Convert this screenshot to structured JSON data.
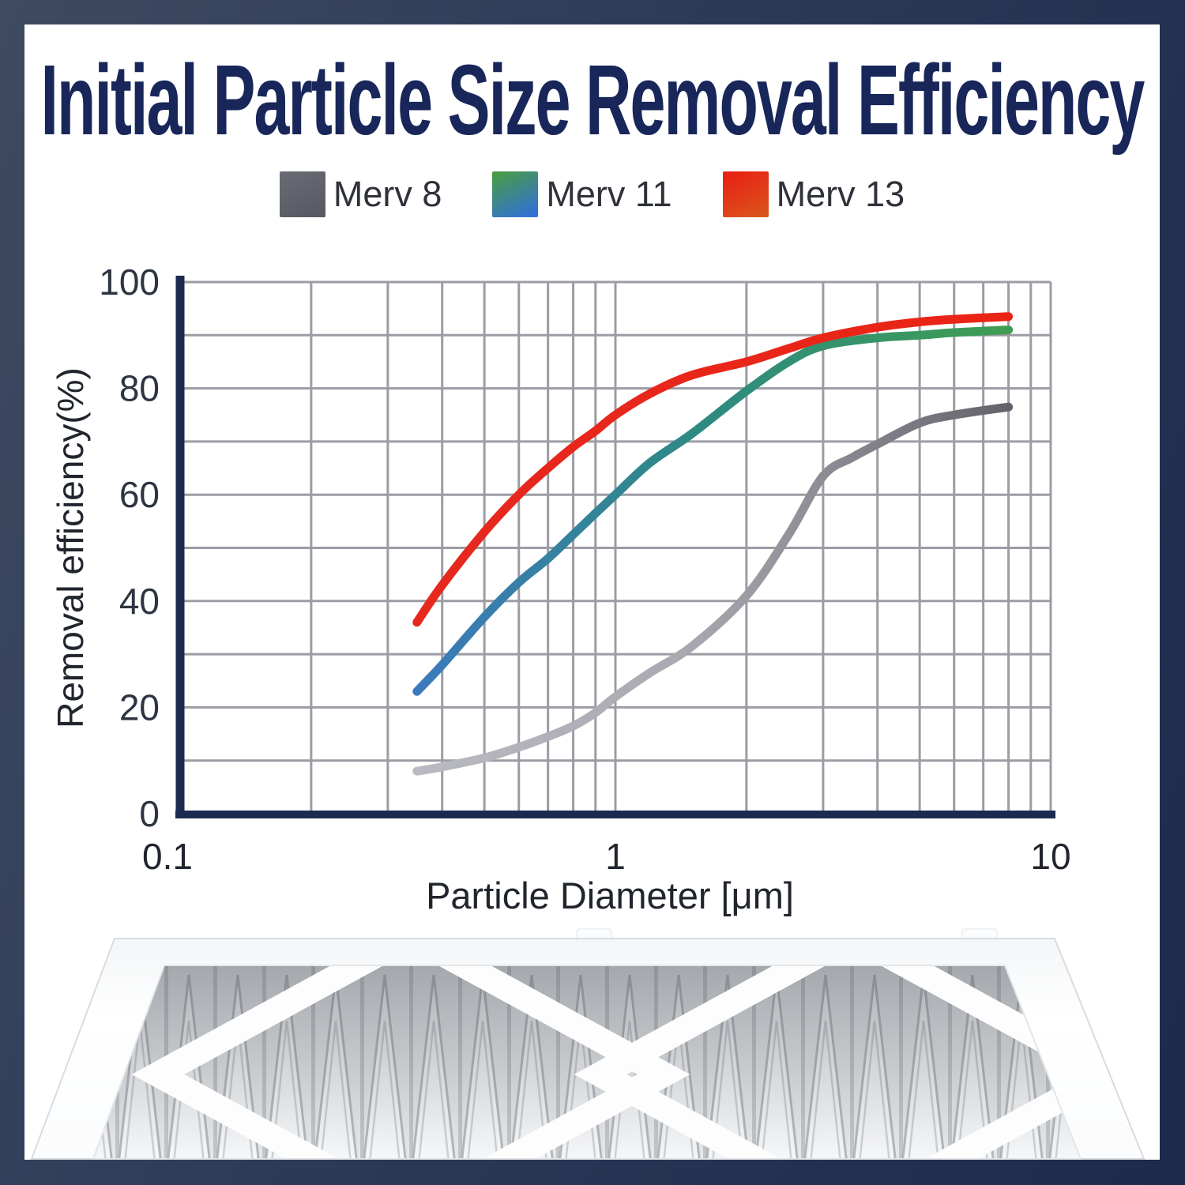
{
  "page": {
    "title": "Initial Particle Size Removal Efficiency"
  },
  "colors": {
    "border_gradient_start": "#3e4a61",
    "border_gradient_end": "#1c2a4c",
    "title": "#18265a",
    "axis": "#1b2a4e",
    "grid": "#9c9ca4",
    "tick_label": "#2d3442",
    "axis_title": "#21252d"
  },
  "legend": [
    {
      "label": "Merv 8",
      "swatch_start": "#6a6c75",
      "swatch_end": "#565861"
    },
    {
      "label": "Merv 11",
      "swatch_start": "#4a9e3e",
      "swatch_end": "#2f6de2"
    },
    {
      "label": "Merv 13",
      "swatch_start": "#ea1d14",
      "swatch_end": "#d9581d"
    }
  ],
  "chart_data": {
    "type": "line",
    "x_axis": {
      "label": "Particle Diameter [μm]",
      "scale": "log",
      "min": 0.1,
      "max": 10,
      "ticks": [
        0.1,
        1,
        10
      ],
      "tick_labels": [
        "0.1",
        "1",
        "10"
      ]
    },
    "y_axis": {
      "label": "Removal efficiency(%)",
      "min": 0,
      "max": 100,
      "ticks": [
        0,
        20,
        40,
        60,
        80,
        100
      ],
      "grid_step": 10
    },
    "grid": "on",
    "legend_position": "top",
    "series": [
      {
        "name": "Merv 8",
        "stops": [
          [
            0,
            "#b9b9c1"
          ],
          [
            0.45,
            "#a9a9b1"
          ],
          [
            0.75,
            "#84848c"
          ],
          [
            1,
            "#63636b"
          ]
        ],
        "points": [
          [
            0.35,
            8
          ],
          [
            0.4,
            8.8
          ],
          [
            0.5,
            10.5
          ],
          [
            0.6,
            12.5
          ],
          [
            0.7,
            14.5
          ],
          [
            0.8,
            16.5
          ],
          [
            0.9,
            19
          ],
          [
            1,
            22
          ],
          [
            1.2,
            26.5
          ],
          [
            1.5,
            31.5
          ],
          [
            2,
            41
          ],
          [
            2.5,
            52.5
          ],
          [
            3,
            63.5
          ],
          [
            3.5,
            67
          ],
          [
            4,
            69.5
          ],
          [
            5,
            73.5
          ],
          [
            6,
            75
          ],
          [
            8,
            76.5
          ]
        ]
      },
      {
        "name": "Merv 11",
        "stops": [
          [
            0,
            "#3b7abc"
          ],
          [
            0.5,
            "#2e8b80"
          ],
          [
            1,
            "#3f9d52"
          ]
        ],
        "points": [
          [
            0.35,
            23
          ],
          [
            0.4,
            28
          ],
          [
            0.5,
            37
          ],
          [
            0.6,
            43.5
          ],
          [
            0.7,
            48
          ],
          [
            0.8,
            52.5
          ],
          [
            0.9,
            56.5
          ],
          [
            1,
            60
          ],
          [
            1.2,
            66
          ],
          [
            1.5,
            71.5
          ],
          [
            2,
            79.5
          ],
          [
            2.5,
            85
          ],
          [
            3,
            88
          ],
          [
            4,
            89.5
          ],
          [
            5,
            90
          ],
          [
            6,
            90.5
          ],
          [
            8,
            91
          ]
        ]
      },
      {
        "name": "Merv 13",
        "stops": [
          [
            0,
            "#e6281f"
          ],
          [
            1,
            "#ea2415"
          ]
        ],
        "points": [
          [
            0.35,
            36
          ],
          [
            0.4,
            43
          ],
          [
            0.5,
            53
          ],
          [
            0.6,
            60
          ],
          [
            0.7,
            65
          ],
          [
            0.8,
            69
          ],
          [
            0.9,
            72
          ],
          [
            1,
            75
          ],
          [
            1.2,
            79
          ],
          [
            1.5,
            82.5
          ],
          [
            2,
            85
          ],
          [
            2.5,
            87.5
          ],
          [
            3,
            89.5
          ],
          [
            4,
            91.5
          ],
          [
            5,
            92.5
          ],
          [
            6,
            93
          ],
          [
            8,
            93.5
          ]
        ]
      }
    ]
  },
  "photo": {
    "description": "white pleated air filter, perspective view"
  }
}
